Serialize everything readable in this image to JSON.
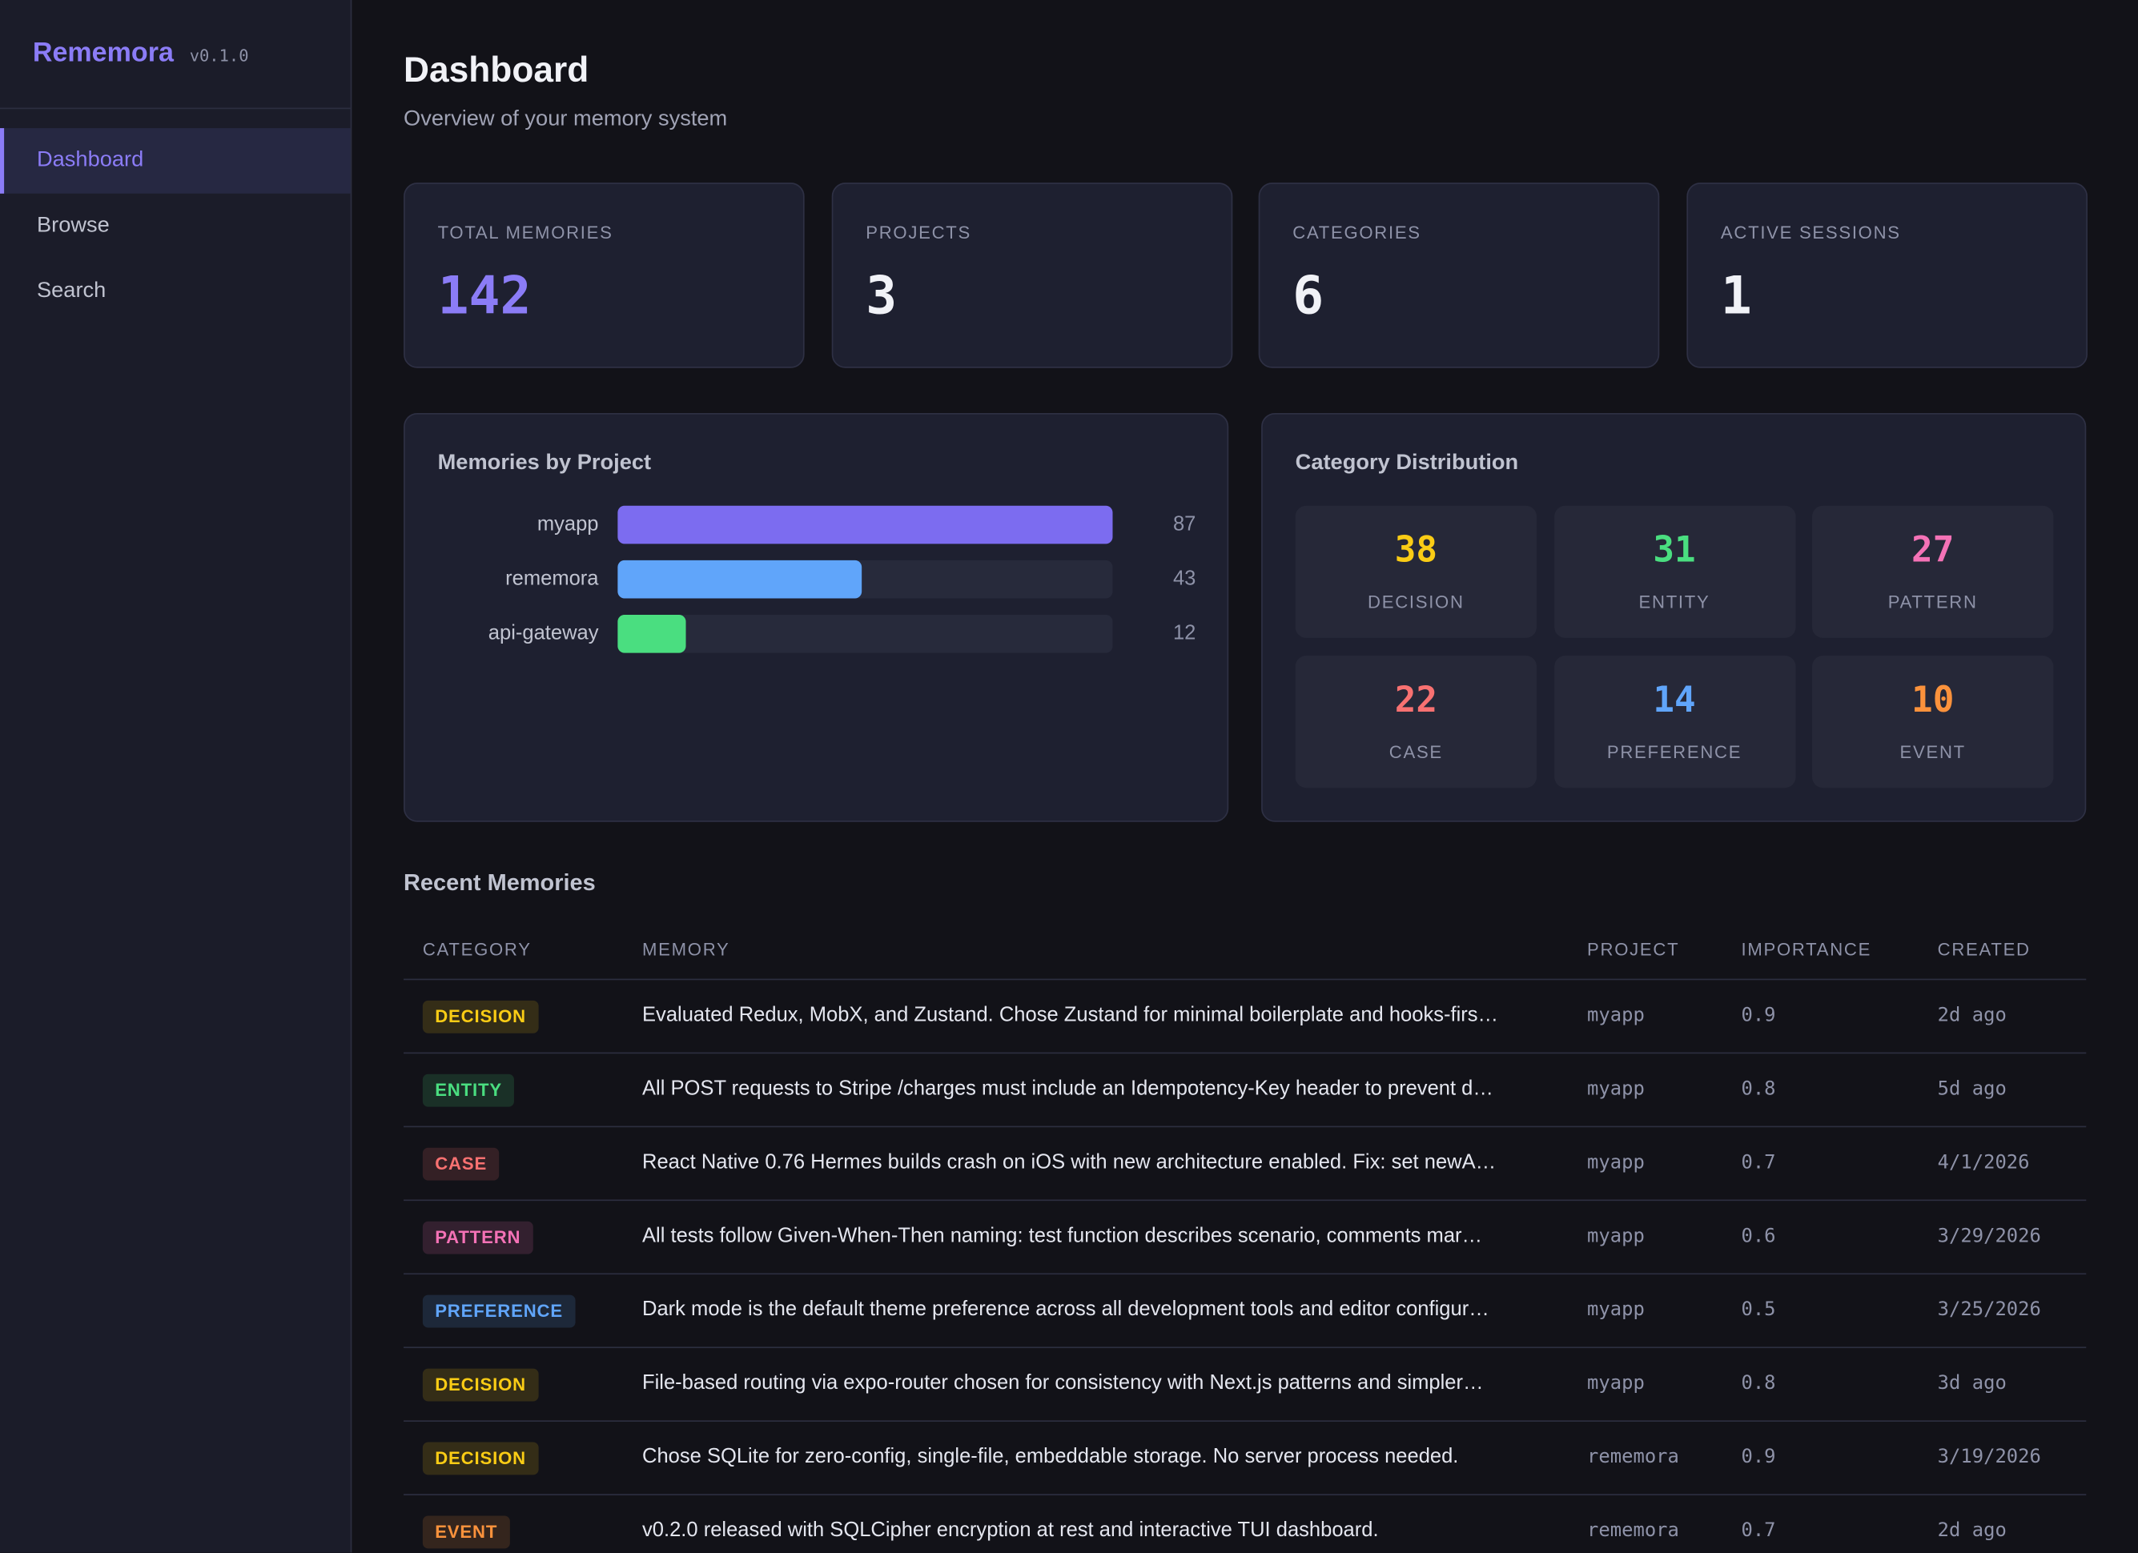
{
  "sidebar": {
    "logo": "Rememora",
    "version": "v0.1.0",
    "nav": [
      "Dashboard",
      "Browse",
      "Search"
    ]
  },
  "header": {
    "title": "Dashboard",
    "subtitle": "Overview of your memory system"
  },
  "stats": [
    {
      "label": "TOTAL MEMORIES",
      "value": 142,
      "color": "#8b7cf6"
    },
    {
      "label": "PROJECTS",
      "value": 3,
      "color": "#f1f2f7"
    },
    {
      "label": "CATEGORIES",
      "value": 6,
      "color": "#f1f2f7"
    },
    {
      "label": "ACTIVE SESSIONS",
      "value": 1,
      "color": "#f1f2f7"
    }
  ],
  "projects_panel": {
    "title": "Memories by Project",
    "categories": [
      "myapp",
      "rememora",
      "api-gateway"
    ],
    "values": [
      87,
      43,
      12
    ],
    "colors": [
      "#7c6cf0",
      "#60a5fa",
      "#4ade80"
    ]
  },
  "category_panel": {
    "title": "Category Distribution",
    "items": [
      {
        "label": "DECISION",
        "value": 38,
        "color": "#facc15"
      },
      {
        "label": "ENTITY",
        "value": 31,
        "color": "#4ade80"
      },
      {
        "label": "PATTERN",
        "value": 27,
        "color": "#f472b6"
      },
      {
        "label": "CASE",
        "value": 22,
        "color": "#f87171"
      },
      {
        "label": "PREFERENCE",
        "value": 14,
        "color": "#60a5fa"
      },
      {
        "label": "EVENT",
        "value": 10,
        "color": "#fb923c"
      }
    ]
  },
  "recent": {
    "title": "Recent Memories",
    "columns": [
      "CATEGORY",
      "MEMORY",
      "PROJECT",
      "IMPORTANCE",
      "CREATED"
    ],
    "rows": [
      [
        "DECISION",
        "Evaluated Redux, MobX, and Zustand. Chose Zustand for minimal boilerplate and hooks-firs…",
        "myapp",
        0.9,
        "2d ago"
      ],
      [
        "ENTITY",
        "All POST requests to Stripe /charges must include an Idempotency-Key header to prevent d…",
        "myapp",
        0.8,
        "5d ago"
      ],
      [
        "CASE",
        "React Native 0.76 Hermes builds crash on iOS with new architecture enabled. Fix: set newA…",
        "myapp",
        0.7,
        "4/1/2026"
      ],
      [
        "PATTERN",
        "All tests follow Given-When-Then naming: test function describes scenario, comments mar…",
        "myapp",
        0.6,
        "3/29/2026"
      ],
      [
        "PREFERENCE",
        "Dark mode is the default theme preference across all development tools and editor configur…",
        "myapp",
        0.5,
        "3/25/2026"
      ],
      [
        "DECISION",
        "File-based routing via expo-router chosen for consistency with Next.js patterns and simpler…",
        "myapp",
        0.8,
        "3d ago"
      ],
      [
        "DECISION",
        "Chose SQLite for zero-config, single-file, embeddable storage. No server process needed.",
        "rememora",
        0.9,
        "3/19/2026"
      ],
      [
        "EVENT",
        "v0.2.0 released with SQLCipher encryption at rest and interactive TUI dashboard.",
        "rememora",
        0.7,
        "2d ago"
      ]
    ]
  }
}
